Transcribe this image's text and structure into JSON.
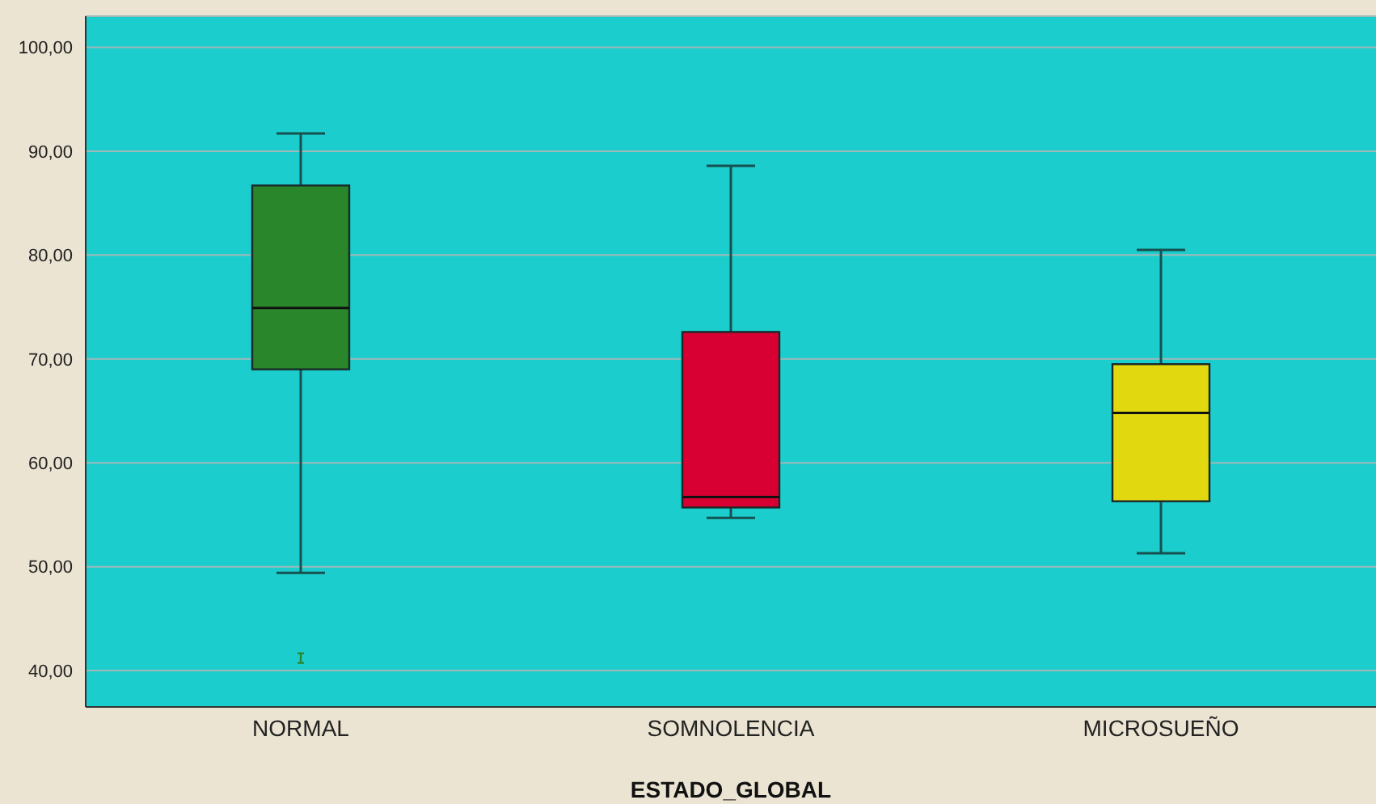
{
  "chart_data": {
    "type": "box",
    "xlabel": "ESTADO_GLOBAL",
    "categories": [
      "NORMAL",
      "SOMNOLENCIA",
      "MICROSUEÑO"
    ],
    "boxes": [
      {
        "low": 49.4,
        "q1": 69.0,
        "median": 74.9,
        "q3": 86.7,
        "high": 91.7,
        "outliers": [
          41.2
        ]
      },
      {
        "low": 54.7,
        "q1": 55.7,
        "median": 56.7,
        "q3": 72.6,
        "high": 88.6
      },
      {
        "low": 51.3,
        "q1": 56.3,
        "median": 64.8,
        "q3": 69.5,
        "high": 80.5
      }
    ],
    "colors": [
      "#2a862a",
      "#d80032",
      "#e2d80f"
    ],
    "ylim": [
      36.5,
      103
    ],
    "yticks": [
      {
        "value": 40,
        "label": "40,00"
      },
      {
        "value": 50,
        "label": "50,00"
      },
      {
        "value": 60,
        "label": "60,00"
      },
      {
        "value": 70,
        "label": "70,00"
      },
      {
        "value": 80,
        "label": "80,00"
      },
      {
        "value": 90,
        "label": "90,00"
      },
      {
        "value": 100,
        "label": "100,00"
      }
    ],
    "grid": "y"
  }
}
